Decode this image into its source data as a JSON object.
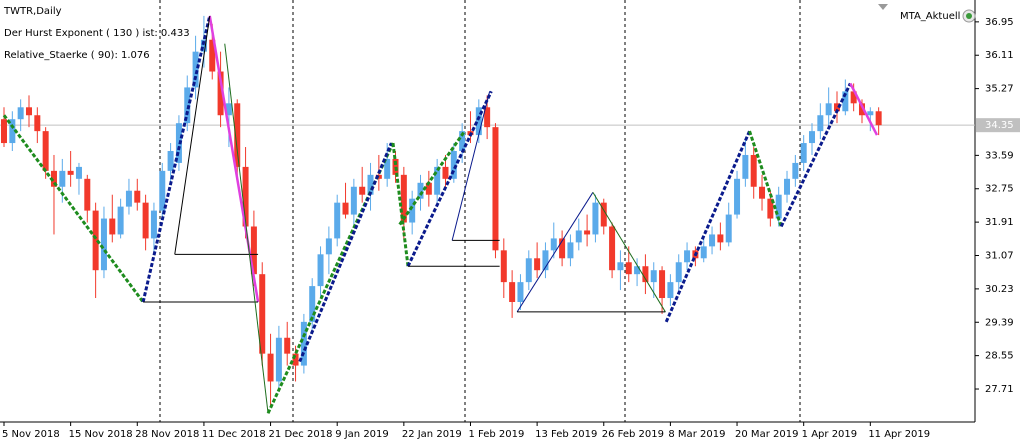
{
  "chart_data": {
    "type": "candlestick",
    "title": "TWTR,Daily",
    "annotations": [
      "Der Hurst Exponent ( 130 ) ist: 0.433",
      "Relative_Staerke ( 90): 1.076"
    ],
    "indicator_label": "MTA_Aktuell",
    "current_price": 34.35,
    "up_color": "#5aaaea",
    "down_color": "#f2392b",
    "ylim": [
      26.88,
      37.5
    ],
    "yticks": [
      36.95,
      36.11,
      35.27,
      33.59,
      32.75,
      31.91,
      31.07,
      30.23,
      29.39,
      28.55,
      27.71
    ],
    "categories": [
      "5 Nov 2018",
      null,
      null,
      null,
      null,
      null,
      null,
      null,
      "15 Nov 2018",
      null,
      null,
      null,
      null,
      null,
      null,
      null,
      "28 Nov 2018",
      null,
      null,
      null,
      null,
      null,
      null,
      null,
      "11 Dec 2018",
      null,
      null,
      null,
      null,
      null,
      null,
      null,
      "21 Dec 2018",
      null,
      null,
      null,
      null,
      null,
      null,
      null,
      "9 Jan 2019",
      null,
      null,
      null,
      null,
      null,
      null,
      null,
      "22 Jan 2019",
      null,
      null,
      null,
      null,
      null,
      null,
      null,
      "1 Feb 2019",
      null,
      null,
      null,
      null,
      null,
      null,
      null,
      "13 Feb 2019",
      null,
      null,
      null,
      null,
      null,
      null,
      null,
      "26 Feb 2019",
      null,
      null,
      null,
      null,
      null,
      null,
      null,
      "8 Mar 2019",
      null,
      null,
      null,
      null,
      null,
      null,
      null,
      "20 Mar 2019",
      null,
      null,
      null,
      null,
      null,
      null,
      null,
      "1 Apr 2019",
      null,
      null,
      null,
      null,
      null,
      null,
      null,
      "11 Apr 2019",
      null
    ],
    "ohlc": [
      [
        34.5,
        34.8,
        33.8,
        33.9
      ],
      [
        33.9,
        34.7,
        33.7,
        34.5
      ],
      [
        34.5,
        35.0,
        34.2,
        34.8
      ],
      [
        34.8,
        35.1,
        34.3,
        34.6
      ],
      [
        34.6,
        34.8,
        33.9,
        34.2
      ],
      [
        34.2,
        34.3,
        33.0,
        33.2
      ],
      [
        33.2,
        33.6,
        31.6,
        32.8
      ],
      [
        32.8,
        33.5,
        32.4,
        33.2
      ],
      [
        33.2,
        33.7,
        32.8,
        33.1
      ],
      [
        33.0,
        33.4,
        32.6,
        33.3
      ],
      [
        33.0,
        33.1,
        31.9,
        32.2
      ],
      [
        32.2,
        32.4,
        30.0,
        30.7
      ],
      [
        30.7,
        32.3,
        30.5,
        32.0
      ],
      [
        32.0,
        32.6,
        31.4,
        31.6
      ],
      [
        31.6,
        32.5,
        31.5,
        32.3
      ],
      [
        32.3,
        33.0,
        32.1,
        32.7
      ],
      [
        32.7,
        33.0,
        32.2,
        32.4
      ],
      [
        32.4,
        32.6,
        31.2,
        31.5
      ],
      [
        31.5,
        32.4,
        31.1,
        32.2
      ],
      [
        32.2,
        33.4,
        32.0,
        33.2
      ],
      [
        33.2,
        33.9,
        32.9,
        33.7
      ],
      [
        33.4,
        34.6,
        33.2,
        34.4
      ],
      [
        34.4,
        35.6,
        34.2,
        35.3
      ],
      [
        35.3,
        36.6,
        35.0,
        36.2
      ],
      [
        36.2,
        37.1,
        35.8,
        36.5
      ],
      [
        36.5,
        36.9,
        35.5,
        35.7
      ],
      [
        35.7,
        36.2,
        34.3,
        34.6
      ],
      [
        34.6,
        35.3,
        33.8,
        34.9
      ],
      [
        34.9,
        35.0,
        33.0,
        33.3
      ],
      [
        33.3,
        33.8,
        31.5,
        31.8
      ],
      [
        31.8,
        32.2,
        30.3,
        30.6
      ],
      [
        30.6,
        30.9,
        28.3,
        28.6
      ],
      [
        28.6,
        29.1,
        27.3,
        27.9
      ],
      [
        27.9,
        29.3,
        27.7,
        29.0
      ],
      [
        29.0,
        29.4,
        28.3,
        28.6
      ],
      [
        28.6,
        28.8,
        27.9,
        28.3
      ],
      [
        28.3,
        29.6,
        28.1,
        29.4
      ],
      [
        29.4,
        30.5,
        29.2,
        30.3
      ],
      [
        30.3,
        31.3,
        30.0,
        31.1
      ],
      [
        31.1,
        31.8,
        30.6,
        31.5
      ],
      [
        31.5,
        32.6,
        31.3,
        32.4
      ],
      [
        32.4,
        32.9,
        32.0,
        32.1
      ],
      [
        32.1,
        33.0,
        31.8,
        32.8
      ],
      [
        32.8,
        33.3,
        32.4,
        32.6
      ],
      [
        32.6,
        33.4,
        32.2,
        33.1
      ],
      [
        33.1,
        33.6,
        32.7,
        33.0
      ],
      [
        33.0,
        33.9,
        32.8,
        33.5
      ],
      [
        33.5,
        33.7,
        32.9,
        33.1
      ],
      [
        33.1,
        33.3,
        31.5,
        31.9
      ],
      [
        31.9,
        32.7,
        31.6,
        32.5
      ],
      [
        32.5,
        33.1,
        32.2,
        32.9
      ],
      [
        32.9,
        33.2,
        32.3,
        32.6
      ],
      [
        32.6,
        33.5,
        32.4,
        33.3
      ],
      [
        33.3,
        33.6,
        32.8,
        33.0
      ],
      [
        33.0,
        33.9,
        32.9,
        33.7
      ],
      [
        33.7,
        34.4,
        33.4,
        34.2
      ],
      [
        34.2,
        34.7,
        33.9,
        34.1
      ],
      [
        34.1,
        35.0,
        33.9,
        34.8
      ],
      [
        34.8,
        35.1,
        34.0,
        34.3
      ],
      [
        34.3,
        34.4,
        31.0,
        31.2
      ],
      [
        31.2,
        31.5,
        30.0,
        30.4
      ],
      [
        30.4,
        30.7,
        29.5,
        29.9
      ],
      [
        29.9,
        30.6,
        29.7,
        30.4
      ],
      [
        30.4,
        31.2,
        30.2,
        31.0
      ],
      [
        31.0,
        31.4,
        30.5,
        30.7
      ],
      [
        30.7,
        31.4,
        30.5,
        31.2
      ],
      [
        31.2,
        31.9,
        31.0,
        31.5
      ],
      [
        31.5,
        31.7,
        30.8,
        31.0
      ],
      [
        31.0,
        31.6,
        30.8,
        31.4
      ],
      [
        31.4,
        32.0,
        31.2,
        31.7
      ],
      [
        31.7,
        32.1,
        31.3,
        31.6
      ],
      [
        31.6,
        32.6,
        31.4,
        32.4
      ],
      [
        32.4,
        32.5,
        31.6,
        31.8
      ],
      [
        31.8,
        31.9,
        30.5,
        30.7
      ],
      [
        30.7,
        31.2,
        30.2,
        30.9
      ],
      [
        30.9,
        31.3,
        30.4,
        30.6
      ],
      [
        30.6,
        31.0,
        30.3,
        30.8
      ],
      [
        30.8,
        31.1,
        30.1,
        30.4
      ],
      [
        30.4,
        30.9,
        30.0,
        30.7
      ],
      [
        30.7,
        30.8,
        29.6,
        30.0
      ],
      [
        30.0,
        30.6,
        29.8,
        30.4
      ],
      [
        30.4,
        31.1,
        30.2,
        30.9
      ],
      [
        30.9,
        31.4,
        30.7,
        31.2
      ],
      [
        31.2,
        31.3,
        30.8,
        31.0
      ],
      [
        31.0,
        31.5,
        30.9,
        31.3
      ],
      [
        31.3,
        31.8,
        31.1,
        31.6
      ],
      [
        31.6,
        31.9,
        31.2,
        31.4
      ],
      [
        31.4,
        32.4,
        31.3,
        32.1
      ],
      [
        32.1,
        33.2,
        32.0,
        33.0
      ],
      [
        33.0,
        34.0,
        32.8,
        33.6
      ],
      [
        33.6,
        33.8,
        32.5,
        32.8
      ],
      [
        32.8,
        33.1,
        32.2,
        32.5
      ],
      [
        32.5,
        32.7,
        31.8,
        32.0
      ],
      [
        32.0,
        32.8,
        31.8,
        32.6
      ],
      [
        32.6,
        33.2,
        32.4,
        33.0
      ],
      [
        33.0,
        33.6,
        32.8,
        33.4
      ],
      [
        33.4,
        34.1,
        33.2,
        33.9
      ],
      [
        33.9,
        34.4,
        33.6,
        34.2
      ],
      [
        34.2,
        34.9,
        34.0,
        34.6
      ],
      [
        34.6,
        35.3,
        34.3,
        34.9
      ],
      [
        34.9,
        35.2,
        34.4,
        34.7
      ],
      [
        34.7,
        35.5,
        34.6,
        35.2
      ],
      [
        35.2,
        35.4,
        34.7,
        34.9
      ],
      [
        34.9,
        35.0,
        34.4,
        34.6
      ],
      [
        34.6,
        34.8,
        34.2,
        34.7
      ],
      [
        34.7,
        34.8,
        34.1,
        34.35
      ]
    ],
    "lines": [
      {
        "color": "#1e8c1e",
        "style": "dashed",
        "x": [
          0,
          16.7
        ],
        "values": [
          34.6,
          29.9
        ]
      },
      {
        "color": "#0a1a8c",
        "style": "dashed",
        "x": [
          16.7,
          24.7
        ],
        "values": [
          29.9,
          37.1
        ]
      },
      {
        "color": "#e040e0",
        "style": "solid",
        "x": [
          24.7,
          30.5
        ],
        "values": [
          37.1,
          29.9
        ]
      },
      {
        "color": "#000000",
        "style": "thin",
        "x": [
          16.7,
          30.5
        ],
        "values": [
          29.9,
          29.9
        ]
      },
      {
        "color": "#000000",
        "style": "thin",
        "x": [
          20.5,
          24.7
        ],
        "values": [
          31.1,
          37.1
        ]
      },
      {
        "color": "#000000",
        "style": "thin",
        "x": [
          20.5,
          30.5
        ],
        "values": [
          31.1,
          31.1
        ]
      },
      {
        "color": "#1e6e1e",
        "style": "thin",
        "x": [
          26.5,
          31.7
        ],
        "values": [
          36.4,
          27.1
        ]
      },
      {
        "color": "#1e8c1e",
        "style": "dashed",
        "x": [
          31.7,
          46.7
        ],
        "values": [
          27.1,
          33.9
        ]
      },
      {
        "color": "#0a1a8c",
        "style": "dashed",
        "x": [
          35.5,
          46.5
        ],
        "values": [
          28.4,
          33.9
        ]
      },
      {
        "color": "#1e8c1e",
        "style": "dashed",
        "x": [
          46.7,
          48.5
        ],
        "values": [
          33.9,
          30.8
        ]
      },
      {
        "color": "#0a1a8c",
        "style": "dashed",
        "x": [
          48.5,
          58.5
        ],
        "values": [
          30.8,
          35.2
        ]
      },
      {
        "color": "#1e8c1e",
        "style": "dashed",
        "x": [
          47.5,
          55.3
        ],
        "values": [
          31.85,
          34.2
        ]
      },
      {
        "color": "#000000",
        "style": "thin",
        "x": [
          48.5,
          59.5
        ],
        "values": [
          30.8,
          30.8
        ]
      },
      {
        "color": "#000000",
        "style": "thin",
        "x": [
          53.8,
          59.5
        ],
        "values": [
          31.45,
          31.45
        ]
      },
      {
        "color": "#0a1a8c",
        "style": "thin",
        "x": [
          53.8,
          58.3
        ],
        "values": [
          31.45,
          35.2
        ]
      },
      {
        "color": "#0a1a8c",
        "style": "thin",
        "x": [
          61.6,
          70.7
        ],
        "values": [
          29.65,
          32.66
        ]
      },
      {
        "color": "#1e6e1e",
        "style": "thin",
        "x": [
          70.7,
          79.4
        ],
        "values": [
          32.66,
          29.65
        ]
      },
      {
        "color": "#000000",
        "style": "thin",
        "x": [
          61.6,
          79.4
        ],
        "values": [
          29.65,
          29.65
        ]
      },
      {
        "color": "#0a1a8c",
        "style": "dashed",
        "x": [
          79.5,
          89.5
        ],
        "values": [
          29.4,
          34.2
        ]
      },
      {
        "color": "#1e8c1e",
        "style": "dashed",
        "x": [
          89.5,
          93.3
        ],
        "values": [
          34.2,
          31.8
        ]
      },
      {
        "color": "#0a1a8c",
        "style": "dashed",
        "x": [
          93.3,
          101.6
        ],
        "values": [
          31.8,
          35.4
        ]
      },
      {
        "color": "#e040e0",
        "style": "solid",
        "x": [
          101.6,
          104.8
        ],
        "values": [
          35.4,
          34.1
        ]
      }
    ]
  }
}
